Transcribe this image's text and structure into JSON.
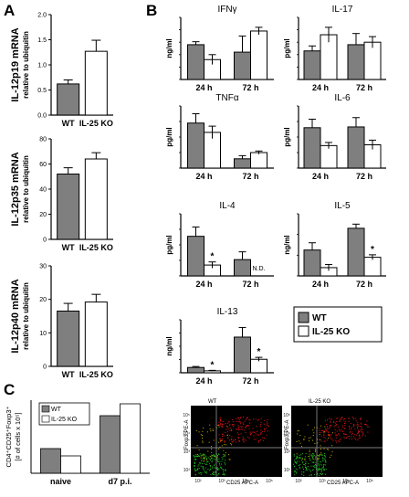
{
  "panel_letters": [
    "A",
    "B",
    "C"
  ],
  "chart_data": [
    {
      "id": "A1",
      "type": "bar",
      "ytitle": "IL-12p19 mRNA",
      "ysub": "relative to ubiquitin",
      "categories": [
        "WT",
        "IL-25 KO"
      ],
      "values": [
        0.62,
        1.27
      ],
      "errors": [
        0.08,
        0.22
      ],
      "colors": [
        "#7f7f7f",
        "#ffffff"
      ],
      "ylim": [
        0,
        2.0
      ],
      "yticks": [
        "0.0",
        "0.5",
        "1.0",
        "1.5",
        "2.0"
      ]
    },
    {
      "id": "A2",
      "type": "bar",
      "ytitle": "IL-12p35 mRNA",
      "ysub": "relative to ubiquitin",
      "categories": [
        "WT",
        "IL-25 KO"
      ],
      "values": [
        52,
        64
      ],
      "errors": [
        5,
        5
      ],
      "colors": [
        "#7f7f7f",
        "#ffffff"
      ],
      "ylim": [
        0,
        80
      ],
      "yticks": [
        "0",
        "20",
        "40",
        "60",
        "80"
      ]
    },
    {
      "id": "A3",
      "type": "bar",
      "ytitle": "IL-12p40 mRNA",
      "ysub": "relative to ubiquitin",
      "categories": [
        "WT",
        "IL-25 KO"
      ],
      "values": [
        16.5,
        19.2
      ],
      "errors": [
        2.3,
        2.3
      ],
      "colors": [
        "#7f7f7f",
        "#ffffff"
      ],
      "ylim": [
        0,
        30
      ],
      "yticks": [
        "0",
        "10",
        "20",
        "30"
      ]
    },
    {
      "id": "B-IFNg",
      "type": "bar",
      "title": "IFNγ",
      "unit": "ng/ml",
      "categories": [
        "24 h",
        "72 h"
      ],
      "series": [
        {
          "name": "WT",
          "values": [
            0.14,
            0.11
          ],
          "errors": [
            0.012,
            0.065
          ]
        },
        {
          "name": "IL-25 KO",
          "values": [
            0.08,
            0.195
          ],
          "errors": [
            0.02,
            0.015
          ]
        }
      ],
      "ylim": [
        0,
        0.25
      ],
      "yticks": [
        "0.00",
        "0.05",
        "0.10",
        "0.15",
        "0.20",
        "0.25"
      ]
    },
    {
      "id": "B-IL17",
      "type": "bar",
      "title": "IL-17",
      "unit": "pg/ml",
      "categories": [
        "24 h",
        "72 h"
      ],
      "series": [
        {
          "name": "WT",
          "values": [
            230,
            280
          ],
          "errors": [
            40,
            90
          ]
        },
        {
          "name": "IL-25 KO",
          "values": [
            360,
            300
          ],
          "errors": [
            60,
            45
          ]
        }
      ],
      "ylim": [
        0,
        500
      ],
      "yticks": [
        "0",
        "100",
        "200",
        "300",
        "400",
        "500"
      ]
    },
    {
      "id": "B-TNFa",
      "type": "bar",
      "title": "TNFα",
      "unit": "pg/ml",
      "categories": [
        "24 h",
        "72 h"
      ],
      "series": [
        {
          "name": "WT",
          "values": [
            29,
            6
          ],
          "errors": [
            6,
            2
          ]
        },
        {
          "name": "IL-25 KO",
          "values": [
            23,
            10
          ],
          "errors": [
            4,
            1
          ]
        }
      ],
      "ylim": [
        0,
        40
      ],
      "yticks": [
        "0",
        "10",
        "20",
        "30",
        "40"
      ]
    },
    {
      "id": "B-IL6",
      "type": "bar",
      "title": "IL-6",
      "unit": "pg/ml",
      "categories": [
        "24 h",
        "72 h"
      ],
      "series": [
        {
          "name": "WT",
          "values": [
            520,
            530
          ],
          "errors": [
            110,
            120
          ]
        },
        {
          "name": "IL-25 KO",
          "values": [
            290,
            300
          ],
          "errors": [
            40,
            60
          ]
        }
      ],
      "ylim": [
        0,
        800
      ],
      "yticks": [
        "0",
        "200",
        "400",
        "600",
        "800"
      ]
    },
    {
      "id": "B-IL4",
      "type": "bar",
      "title": "IL-4",
      "unit": "pg/ml",
      "categories": [
        "24 h",
        "72 h"
      ],
      "series": [
        {
          "name": "WT",
          "values": [
            51,
            21
          ],
          "errors": [
            12,
            10
          ]
        },
        {
          "name": "IL-25 KO",
          "values": [
            14,
            null
          ],
          "errors": [
            4,
            0
          ]
        }
      ],
      "annotations": [
        {
          "category": 0,
          "series": 1,
          "text": "*"
        },
        {
          "category": 1,
          "series": 1,
          "text": "N.D."
        }
      ],
      "ylim": [
        0,
        80
      ],
      "yticks": [
        "0",
        "20",
        "40",
        "60",
        "80"
      ]
    },
    {
      "id": "B-IL5",
      "type": "bar",
      "title": "IL-5",
      "unit": "ng/ml",
      "categories": [
        "24 h",
        "72 h"
      ],
      "series": [
        {
          "name": "WT",
          "values": [
            1.25,
            2.3
          ],
          "errors": [
            0.35,
            0.2
          ]
        },
        {
          "name": "IL-25 KO",
          "values": [
            0.4,
            0.9
          ],
          "errors": [
            0.15,
            0.12
          ]
        }
      ],
      "annotations": [
        {
          "category": 1,
          "series": 1,
          "text": "*"
        }
      ],
      "ylim": [
        0,
        3
      ],
      "yticks": [
        "0",
        "1",
        "2",
        "3"
      ]
    },
    {
      "id": "B-IL13",
      "type": "bar",
      "title": "IL-13",
      "unit": "ng/ml",
      "categories": [
        "24 h",
        "72 h"
      ],
      "series": [
        {
          "name": "WT",
          "values": [
            11,
            74
          ],
          "errors": [
            2,
            20
          ]
        },
        {
          "name": "IL-25 KO",
          "values": [
            4,
            28
          ],
          "errors": [
            1,
            4
          ]
        }
      ],
      "annotations": [
        {
          "category": 0,
          "series": 1,
          "text": "*"
        },
        {
          "category": 1,
          "series": 1,
          "text": "*"
        }
      ],
      "ylim": [
        0,
        110
      ],
      "yticks": [
        "0",
        "25",
        "50",
        "75",
        "100"
      ]
    },
    {
      "id": "C1",
      "type": "bar",
      "ytitle_1": "CD4⁺CD25⁺Foxp3⁺",
      "ytitle_2": "[# of cells x 10⁵]",
      "categories": [
        "naive",
        "d7 p.i."
      ],
      "series": [
        {
          "name": "WT",
          "values": [
            2.7,
            6.3
          ]
        },
        {
          "name": "IL-25 KO",
          "values": [
            1.9,
            7.6
          ]
        }
      ],
      "ylim": [
        0,
        8
      ]
    }
  ],
  "legend": {
    "wt": "WT",
    "ko": "IL-25 KO"
  },
  "legend_c": {
    "wt": "WT",
    "ko": "IL-25 KO"
  },
  "colors": {
    "wt": "#7f7f7f",
    "ko": "#ffffff",
    "flow_bg": "#000000",
    "flow_red": "#e8141a",
    "flow_green": "#1fc21f",
    "flow_yellow": "#c8b400"
  },
  "flow": [
    {
      "title": "WT",
      "ylabel": "Foxp3 PE-A",
      "xlabel": "CD25 APC-A"
    },
    {
      "title": "IL-25 KO",
      "ylabel": "Foxp3 PE-A",
      "xlabel": "CD25 APC-A"
    }
  ],
  "flow_ticks": [
    "10²",
    "10³",
    "10⁴",
    "10⁵"
  ]
}
